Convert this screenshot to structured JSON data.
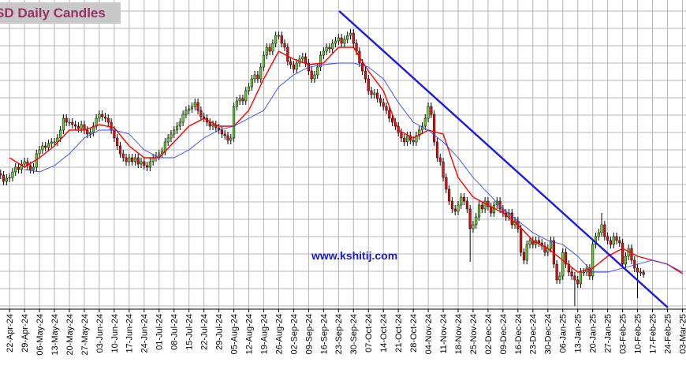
{
  "chart_data": {
    "type": "candlestick",
    "title": "SD Daily Candles",
    "annotation": "www.kshitij.com",
    "up_color": "#66cc33",
    "down_color": "#e01010",
    "grid": true,
    "xlim": [
      -0.2,
      229.2
    ],
    "ylim": [
      8,
      400
    ],
    "yticks": [
      12,
      34,
      56,
      78,
      100,
      122,
      144,
      166,
      188,
      210,
      232,
      254,
      276,
      298,
      320,
      342,
      364,
      386
    ],
    "xticks": [
      {
        "value": 3,
        "label": "22-Apr-24"
      },
      {
        "value": 8,
        "label": "29-Apr-24"
      },
      {
        "value": 13,
        "label": "06-May-24"
      },
      {
        "value": 18,
        "label": "13-May-24"
      },
      {
        "value": 23,
        "label": "20-May-24"
      },
      {
        "value": 28,
        "label": "27-May-24"
      },
      {
        "value": 33,
        "label": "03-Jun-24"
      },
      {
        "value": 38,
        "label": "10-Jun-24"
      },
      {
        "value": 43,
        "label": "17-Jun-24"
      },
      {
        "value": 48,
        "label": "24-Jun-24"
      },
      {
        "value": 53,
        "label": "01-Jul-24"
      },
      {
        "value": 58,
        "label": "08-Jul-24"
      },
      {
        "value": 63,
        "label": "15-Jul-24"
      },
      {
        "value": 68,
        "label": "22-Jul-24"
      },
      {
        "value": 73,
        "label": "29-Jul-24"
      },
      {
        "value": 78,
        "label": "05-Aug-24"
      },
      {
        "value": 83,
        "label": "12-Aug-24"
      },
      {
        "value": 88,
        "label": "19-Aug-24"
      },
      {
        "value": 93,
        "label": "26-Aug-24"
      },
      {
        "value": 98,
        "label": "02-Sep-24"
      },
      {
        "value": 103,
        "label": "09-Sep-24"
      },
      {
        "value": 108,
        "label": "16-Sep-24"
      },
      {
        "value": 113,
        "label": "23-Sep-24"
      },
      {
        "value": 118,
        "label": "30-Sep-24"
      },
      {
        "value": 123,
        "label": "07-Oct-24"
      },
      {
        "value": 128,
        "label": "14-Oct-24"
      },
      {
        "value": 133,
        "label": "21-Oct-24"
      },
      {
        "value": 138,
        "label": "28-Oct-24"
      },
      {
        "value": 143,
        "label": "04-Nov-24"
      },
      {
        "value": 148,
        "label": "11-Nov-24"
      },
      {
        "value": 153,
        "label": "18-Nov-24"
      },
      {
        "value": 158,
        "label": "25-Nov-24"
      },
      {
        "value": 163,
        "label": "02-Dec-24"
      },
      {
        "value": 168,
        "label": "09-Dec-24"
      },
      {
        "value": 173,
        "label": "16-Dec-24"
      },
      {
        "value": 178,
        "label": "23-Dec-24"
      },
      {
        "value": 183,
        "label": "30-Dec-24"
      },
      {
        "value": 188,
        "label": "06-Jan-25"
      },
      {
        "value": 193,
        "label": "13-Jan-25"
      },
      {
        "value": 198,
        "label": "20-Jan-25"
      },
      {
        "value": 203,
        "label": "27-Jan-25"
      },
      {
        "value": 208,
        "label": "03-Feb-25"
      },
      {
        "value": 213,
        "label": "10-Feb-25"
      },
      {
        "value": 218,
        "label": "17-Feb-25"
      },
      {
        "value": 223,
        "label": "24-Feb-25"
      },
      {
        "value": 228,
        "label": "03-Mar-25"
      }
    ],
    "open": [
      180,
      178,
      170,
      174,
      175,
      182,
      188,
      185,
      192,
      195,
      190,
      185,
      188,
      205,
      210,
      215,
      213,
      218,
      220,
      220,
      225,
      235,
      250,
      245,
      245,
      242,
      240,
      237,
      242,
      235,
      230,
      232,
      240,
      250,
      255,
      252,
      250,
      245,
      235,
      225,
      215,
      205,
      200,
      195,
      200,
      195,
      200,
      192,
      195,
      190,
      188,
      195,
      200,
      202,
      205,
      208,
      220,
      225,
      230,
      235,
      240,
      245,
      255,
      260,
      262,
      265,
      270,
      260,
      252,
      250,
      245,
      240,
      242,
      238,
      235,
      230,
      228,
      222,
      225,
      265,
      272,
      275,
      272,
      285,
      290,
      300,
      305,
      300,
      315,
      330,
      340,
      335,
      345,
      355,
      355,
      345,
      340,
      322,
      318,
      312,
      320,
      325,
      328,
      320,
      310,
      300,
      305,
      315,
      330,
      335,
      340,
      338,
      345,
      348,
      352,
      345,
      350,
      355,
      358,
      345,
      335,
      320,
      310,
      300,
      285,
      280,
      282,
      275,
      270,
      265,
      260,
      250,
      245,
      240,
      232,
      225,
      220,
      228,
      222,
      220,
      228,
      235,
      240,
      250,
      265,
      255,
      220,
      200,
      195,
      175,
      160,
      145,
      135,
      132,
      140,
      150,
      145,
      135,
      110,
      115,
      125,
      140,
      135,
      145,
      138,
      130,
      140,
      145,
      135,
      130,
      125,
      130,
      115,
      120,
      110,
      80,
      70,
      90,
      95,
      90,
      95,
      92,
      88,
      80,
      85,
      95,
      65,
      45,
      50,
      80,
      65,
      55,
      50,
      45,
      40,
      55,
      55,
      60,
      50,
      90,
      100,
      105,
      115,
      100,
      95,
      90,
      100,
      95,
      92,
      65,
      75,
      85,
      70,
      60,
      55,
      55
    ],
    "high": [
      185,
      183,
      179,
      180,
      187,
      193,
      193,
      197,
      200,
      200,
      195,
      193,
      210,
      215,
      220,
      220,
      223,
      225,
      225,
      230,
      240,
      255,
      255,
      250,
      250,
      247,
      245,
      247,
      247,
      240,
      237,
      245,
      255,
      260,
      260,
      257,
      255,
      250,
      240,
      230,
      220,
      210,
      205,
      205,
      205,
      205,
      205,
      200,
      200,
      195,
      200,
      205,
      207,
      210,
      213,
      225,
      230,
      235,
      240,
      245,
      250,
      260,
      265,
      267,
      270,
      275,
      275,
      265,
      257,
      255,
      250,
      247,
      247,
      243,
      240,
      235,
      233,
      230,
      270,
      277,
      280,
      280,
      290,
      295,
      305,
      310,
      310,
      320,
      335,
      345,
      345,
      350,
      360,
      360,
      360,
      350,
      345,
      327,
      323,
      325,
      330,
      333,
      333,
      325,
      315,
      310,
      320,
      335,
      340,
      345,
      345,
      350,
      353,
      357,
      357,
      355,
      360,
      363,
      363,
      350,
      340,
      325,
      315,
      305,
      290,
      287,
      287,
      280,
      275,
      270,
      265,
      255,
      250,
      245,
      237,
      230,
      233,
      233,
      227,
      233,
      240,
      245,
      255,
      270,
      270,
      260,
      225,
      205,
      200,
      180,
      165,
      150,
      140,
      145,
      155,
      155,
      150,
      140,
      120,
      130,
      145,
      145,
      150,
      150,
      143,
      145,
      150,
      150,
      140,
      135,
      135,
      135,
      125,
      125,
      115,
      85,
      95,
      100,
      100,
      100,
      100,
      97,
      93,
      90,
      100,
      100,
      70,
      55,
      85,
      85,
      70,
      60,
      55,
      50,
      60,
      60,
      65,
      65,
      95,
      105,
      110,
      130,
      120,
      105,
      100,
      105,
      105,
      100,
      97,
      80,
      90,
      90,
      75,
      65,
      60,
      58
    ],
    "low": [
      173,
      165,
      165,
      169,
      170,
      177,
      180,
      180,
      187,
      185,
      180,
      180,
      183,
      200,
      205,
      208,
      208,
      213,
      215,
      215,
      220,
      230,
      240,
      240,
      237,
      235,
      232,
      232,
      230,
      225,
      225,
      227,
      235,
      245,
      247,
      245,
      240,
      230,
      220,
      210,
      200,
      195,
      190,
      190,
      190,
      190,
      187,
      187,
      185,
      183,
      183,
      190,
      195,
      197,
      200,
      203,
      215,
      220,
      225,
      230,
      235,
      240,
      250,
      255,
      257,
      260,
      255,
      247,
      245,
      240,
      235,
      235,
      233,
      230,
      225,
      223,
      217,
      217,
      220,
      260,
      267,
      267,
      267,
      280,
      285,
      295,
      295,
      295,
      310,
      325,
      330,
      330,
      340,
      350,
      340,
      335,
      317,
      313,
      307,
      307,
      315,
      320,
      315,
      305,
      295,
      295,
      300,
      310,
      325,
      330,
      333,
      333,
      340,
      343,
      340,
      340,
      345,
      350,
      340,
      330,
      315,
      305,
      295,
      280,
      275,
      275,
      270,
      265,
      260,
      255,
      245,
      240,
      235,
      227,
      220,
      215,
      215,
      217,
      215,
      215,
      223,
      230,
      235,
      245,
      250,
      215,
      195,
      190,
      170,
      155,
      140,
      130,
      127,
      127,
      135,
      140,
      130,
      68,
      105,
      110,
      120,
      130,
      130,
      133,
      125,
      125,
      135,
      130,
      125,
      120,
      120,
      110,
      110,
      105,
      75,
      65,
      65,
      85,
      85,
      85,
      87,
      83,
      75,
      75,
      80,
      60,
      40,
      40,
      45,
      60,
      50,
      45,
      12,
      35,
      35,
      50,
      50,
      45,
      45,
      85,
      95,
      100,
      95,
      90,
      85,
      85,
      90,
      87,
      60,
      60,
      70,
      65,
      55,
      22,
      50,
      48
    ],
    "close": [
      178,
      170,
      174,
      175,
      182,
      188,
      185,
      192,
      195,
      190,
      185,
      188,
      205,
      210,
      215,
      213,
      218,
      220,
      220,
      225,
      235,
      250,
      245,
      245,
      242,
      240,
      237,
      242,
      235,
      230,
      232,
      240,
      250,
      255,
      252,
      250,
      245,
      235,
      225,
      215,
      205,
      200,
      195,
      200,
      195,
      200,
      192,
      195,
      190,
      188,
      195,
      200,
      202,
      205,
      208,
      220,
      225,
      230,
      235,
      240,
      245,
      255,
      260,
      262,
      265,
      270,
      260,
      252,
      250,
      245,
      240,
      242,
      238,
      235,
      230,
      228,
      222,
      225,
      265,
      272,
      275,
      272,
      285,
      290,
      300,
      305,
      300,
      315,
      330,
      340,
      335,
      345,
      355,
      355,
      345,
      340,
      322,
      318,
      312,
      320,
      325,
      328,
      320,
      310,
      300,
      305,
      315,
      330,
      335,
      340,
      338,
      345,
      348,
      352,
      345,
      350,
      355,
      358,
      345,
      335,
      320,
      310,
      300,
      285,
      280,
      282,
      275,
      270,
      265,
      260,
      250,
      245,
      240,
      232,
      225,
      220,
      228,
      222,
      220,
      228,
      235,
      240,
      250,
      265,
      255,
      220,
      200,
      195,
      175,
      160,
      145,
      135,
      132,
      140,
      150,
      145,
      135,
      110,
      115,
      125,
      140,
      135,
      145,
      138,
      130,
      140,
      145,
      135,
      130,
      125,
      130,
      115,
      120,
      110,
      80,
      70,
      90,
      95,
      90,
      95,
      92,
      88,
      80,
      85,
      95,
      65,
      45,
      50,
      80,
      65,
      55,
      50,
      45,
      40,
      55,
      55,
      60,
      50,
      90,
      100,
      105,
      115,
      100,
      95,
      90,
      100,
      95,
      92,
      65,
      75,
      85,
      70,
      60,
      55,
      55,
      52
    ],
    "lines": [
      {
        "color": "#ff0000",
        "width": 1.4,
        "x": [
          3,
          8,
          13,
          18,
          23,
          28,
          33,
          38,
          43,
          48,
          53,
          58,
          63,
          68,
          73,
          78,
          83,
          88,
          93,
          98,
          103,
          108,
          113,
          118,
          123,
          128,
          133,
          138,
          143,
          148,
          153,
          158,
          163,
          168,
          173,
          178,
          183,
          188,
          193,
          198,
          203,
          208,
          213,
          218,
          223,
          228
        ],
        "values": [
          200,
          188,
          200,
          215,
          235,
          235,
          242,
          238,
          215,
          200,
          200,
          220,
          240,
          250,
          240,
          240,
          260,
          300,
          335,
          325,
          318,
          320,
          340,
          340,
          310,
          285,
          235,
          225,
          235,
          230,
          175,
          150,
          140,
          130,
          115,
          95,
          85,
          70,
          55,
          60,
          75,
          85,
          75,
          70,
          65,
          53
        ]
      },
      {
        "color": "#3344ff",
        "width": 0.9,
        "x": [
          8,
          13,
          18,
          23,
          28,
          33,
          38,
          43,
          48,
          53,
          58,
          63,
          68,
          73,
          78,
          83,
          88,
          93,
          98,
          103,
          108,
          113,
          118,
          123,
          128,
          133,
          138,
          143,
          148,
          153,
          158,
          163,
          168,
          173,
          178,
          183,
          188,
          193,
          198,
          203,
          208,
          213,
          218,
          223,
          228
        ],
        "values": [
          185,
          182,
          190,
          205,
          225,
          235,
          235,
          230,
          210,
          200,
          200,
          210,
          225,
          235,
          240,
          250,
          260,
          290,
          305,
          315,
          318,
          320,
          320,
          315,
          300,
          270,
          245,
          235,
          220,
          200,
          175,
          155,
          135,
          120,
          105,
          95,
          90,
          75,
          55,
          55,
          60,
          65,
          70,
          65,
          55
        ]
      },
      {
        "color": "#1a1ae0",
        "width": 2.4,
        "x": [
          113.2,
          223.1
        ],
        "values": [
          386,
          10
        ]
      }
    ]
  }
}
